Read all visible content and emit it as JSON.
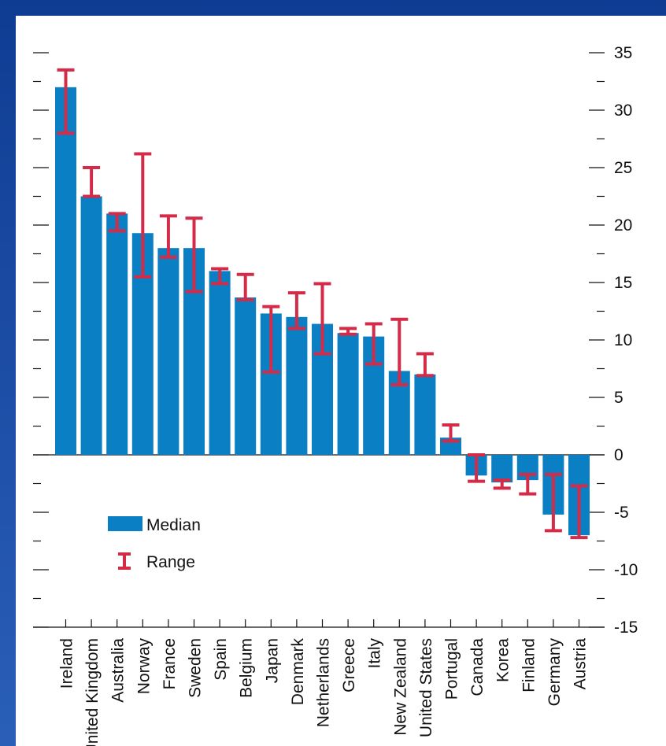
{
  "chart_data": {
    "type": "bar",
    "categories": [
      "Ireland",
      "United Kingdom",
      "Australia",
      "Norway",
      "France",
      "Sweden",
      "Spain",
      "Belgium",
      "Japan",
      "Denmark",
      "Netherlands",
      "Greece",
      "Italy",
      "New Zealand",
      "United States",
      "Portugal",
      "Canada",
      "Korea",
      "Finland",
      "Germany",
      "Austria"
    ],
    "series": [
      {
        "name": "Median",
        "values": [
          32,
          22.5,
          21,
          19.3,
          18,
          18,
          16,
          13.7,
          12.3,
          12,
          11.4,
          10.6,
          10.3,
          7.3,
          7,
          1.5,
          -1.8,
          -2.4,
          -2.2,
          -5.2,
          -7
        ]
      },
      {
        "name": "Range",
        "low": [
          28,
          22.5,
          19.5,
          15.5,
          17.2,
          14.2,
          14.9,
          13.5,
          7.2,
          11,
          8.8,
          10.5,
          7.9,
          6.1,
          6.9,
          1.2,
          -2.3,
          -2.9,
          -3.4,
          -6.6,
          -7.2
        ],
        "high": [
          33.5,
          25,
          21,
          26.2,
          20.8,
          20.6,
          16.2,
          15.7,
          12.9,
          14.1,
          14.9,
          11,
          11.4,
          11.8,
          8.8,
          2.6,
          0,
          -2.2,
          -1.7,
          -1.7,
          -2.7
        ]
      }
    ],
    "ylim": [
      -15,
      35
    ],
    "yticks": [
      -15,
      -10,
      -5,
      0,
      5,
      10,
      15,
      20,
      25,
      30,
      35
    ],
    "ytick_labels": [
      "-15",
      "-10",
      "-5",
      "0",
      "5",
      "10",
      "15",
      "20",
      "25",
      "30",
      "35"
    ],
    "legend": {
      "items": [
        "Median",
        "Range"
      ],
      "position": "lower-left"
    },
    "grid": false,
    "colors": {
      "bar": "#0a7fc4",
      "range": "#d42b48",
      "background": "#1f4fa3"
    }
  }
}
